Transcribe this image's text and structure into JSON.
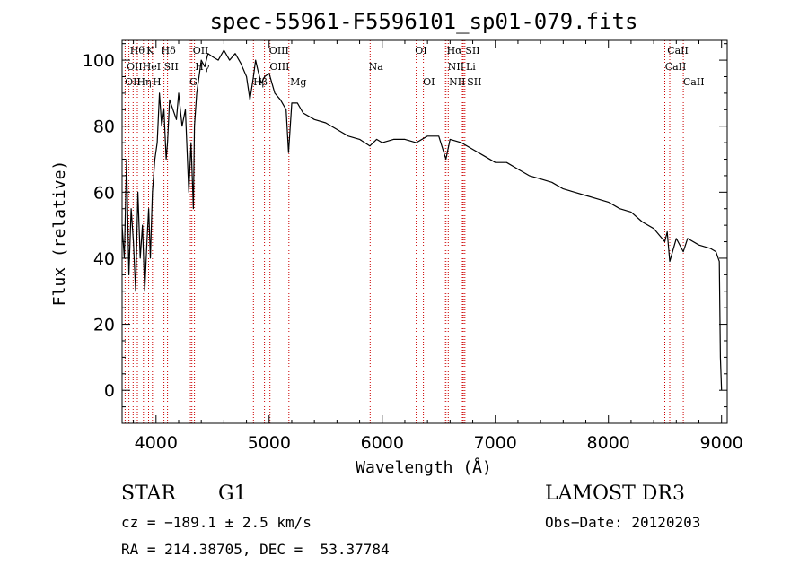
{
  "chart_data": {
    "type": "line",
    "title": "spec-55961-F5596101_sp01-079.fits",
    "xlabel": "Wavelength (Å)",
    "ylabel": "Flux (relative)",
    "xlim": [
      3700,
      9050
    ],
    "ylim": [
      -10,
      106
    ],
    "xticks": [
      4000,
      5000,
      6000,
      7000,
      8000,
      9000
    ],
    "yticks": [
      0,
      20,
      40,
      60,
      80,
      100
    ],
    "grid": false,
    "series": [
      {
        "name": "spectrum",
        "x": [
          3700,
          3720,
          3740,
          3760,
          3780,
          3800,
          3820,
          3840,
          3860,
          3880,
          3900,
          3920,
          3935,
          3950,
          3968,
          3990,
          4010,
          4030,
          4050,
          4070,
          4090,
          4102,
          4120,
          4150,
          4180,
          4200,
          4230,
          4260,
          4290,
          4310,
          4330,
          4340,
          4360,
          4380,
          4400,
          4430,
          4460,
          4500,
          4550,
          4600,
          4650,
          4700,
          4750,
          4800,
          4830,
          4861,
          4880,
          4900,
          4930,
          4960,
          5000,
          5050,
          5100,
          5150,
          5172,
          5200,
          5250,
          5300,
          5400,
          5500,
          5600,
          5700,
          5800,
          5890,
          5950,
          6000,
          6100,
          6200,
          6300,
          6400,
          6500,
          6563,
          6600,
          6700,
          6800,
          6900,
          7000,
          7100,
          7200,
          7300,
          7400,
          7500,
          7600,
          7700,
          7800,
          7900,
          8000,
          8100,
          8200,
          8300,
          8400,
          8498,
          8520,
          8542,
          8600,
          8662,
          8700,
          8800,
          8900,
          8950,
          8980,
          8990,
          9000
        ],
        "y": [
          50,
          40,
          70,
          35,
          55,
          45,
          30,
          60,
          40,
          50,
          30,
          45,
          55,
          40,
          60,
          70,
          75,
          90,
          80,
          85,
          70,
          75,
          88,
          85,
          82,
          90,
          80,
          85,
          60,
          75,
          55,
          80,
          90,
          95,
          100,
          98,
          102,
          101,
          100,
          103,
          100,
          102,
          99,
          95,
          88,
          95,
          100,
          97,
          93,
          95,
          96,
          90,
          88,
          85,
          72,
          87,
          87,
          84,
          82,
          81,
          79,
          77,
          76,
          74,
          76,
          75,
          76,
          76,
          75,
          77,
          77,
          70,
          76,
          75,
          73,
          71,
          69,
          69,
          67,
          65,
          64,
          63,
          61,
          60,
          59,
          58,
          57,
          55,
          54,
          51,
          49,
          45,
          48,
          39,
          46,
          42,
          46,
          44,
          43,
          42,
          39,
          10,
          0
        ]
      }
    ],
    "lines": [
      {
        "name": "Hθ",
        "x": 3798
      },
      {
        "name": "OII",
        "x": 3727
      },
      {
        "name": "OII",
        "x": 3760
      },
      {
        "name": "Hη",
        "x": 3835
      },
      {
        "name": "K",
        "x": 3934
      },
      {
        "name": "H",
        "x": 3968
      },
      {
        "name": "HeI",
        "x": 3889
      },
      {
        "name": "SII",
        "x": 4070
      },
      {
        "name": "Hδ",
        "x": 4102
      },
      {
        "name": "OII",
        "x": 4317
      },
      {
        "name": "Hγ",
        "x": 4340
      },
      {
        "name": "G",
        "x": 4304
      },
      {
        "name": "Hβ",
        "x": 4861
      },
      {
        "name": "OIII",
        "x": 4959
      },
      {
        "name": "OIII",
        "x": 5007
      },
      {
        "name": "Mg",
        "x": 5175
      },
      {
        "name": "Na",
        "x": 5893
      },
      {
        "name": "OI",
        "x": 6300
      },
      {
        "name": "OI",
        "x": 6364
      },
      {
        "name": "Hα",
        "x": 6563
      },
      {
        "name": "NII",
        "x": 6548
      },
      {
        "name": "NII",
        "x": 6584
      },
      {
        "name": "SII",
        "x": 6717
      },
      {
        "name": "SII",
        "x": 6731
      },
      {
        "name": "Li",
        "x": 6708
      },
      {
        "name": "CaII",
        "x": 8498
      },
      {
        "name": "CaII",
        "x": 8542
      },
      {
        "name": "CaII",
        "x": 8662
      }
    ],
    "labels": {
      "row1": [
        "Hθ",
        "K",
        "Hδ",
        "OII",
        "OIII",
        "OI",
        "Hα",
        "SII",
        "CaII"
      ],
      "row2": [
        "OII",
        "HeI",
        "SII",
        "Hγ",
        "OIII",
        "Na",
        "NII",
        "Li",
        "CaII"
      ],
      "row3": [
        "OII",
        "Hη",
        "H",
        "G",
        "Hβ",
        "Mg",
        "OI",
        "NII",
        "SII",
        "CaII"
      ]
    }
  },
  "info": {
    "object_class": "STAR",
    "subclass": "G1",
    "survey": "LAMOST DR3",
    "cz": "cz = −189.1 ± 2.5 km/s",
    "obs_date": "Obs−Date: 20120203",
    "coords": "RA = 214.38705, DEC =  53.37784"
  },
  "colors": {
    "line": "#000000",
    "marker": "#cc0000"
  }
}
